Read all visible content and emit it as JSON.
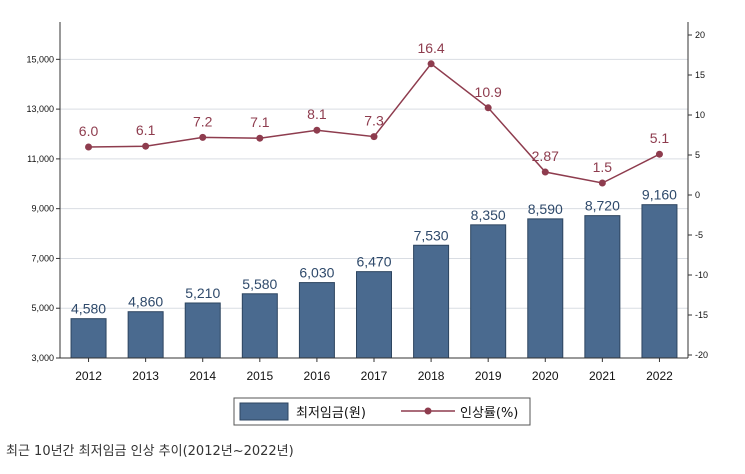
{
  "chart_data": {
    "type": "bar+line",
    "categories": [
      "2012",
      "2013",
      "2014",
      "2015",
      "2016",
      "2017",
      "2018",
      "2019",
      "2020",
      "2021",
      "2022"
    ],
    "series": [
      {
        "name": "최저임금(원)",
        "type": "bar",
        "axis": "left",
        "values": [
          4580,
          4860,
          5210,
          5580,
          6030,
          6470,
          7530,
          8350,
          8590,
          8720,
          9160
        ],
        "labels": [
          "4,580",
          "4,860",
          "5,210",
          "5,580",
          "6,030",
          "6,470",
          "7,530",
          "8,350",
          "8,590",
          "8,720",
          "9,160"
        ],
        "color": "#4a6a8f"
      },
      {
        "name": "인상률(%)",
        "type": "line",
        "axis": "right",
        "values": [
          6.0,
          6.1,
          7.2,
          7.1,
          8.1,
          7.3,
          16.4,
          10.9,
          2.87,
          1.5,
          5.1
        ],
        "labels": [
          "6.0",
          "6.1",
          "7.2",
          "7.1",
          "8.1",
          "7.3",
          "16.4",
          "10.9",
          "2.87",
          "1.5",
          "5.1"
        ],
        "color": "#8e3c4e"
      }
    ],
    "y_left": {
      "range": [
        3000,
        16500
      ],
      "ticks": [
        3000,
        5000,
        7000,
        9000,
        11000,
        13000,
        15000
      ],
      "tick_labels": [
        "3,000",
        "5,000",
        "7,000",
        "9,000",
        "11,000",
        "13,000",
        "15,000"
      ]
    },
    "y_right": {
      "range": [
        -20,
        20
      ],
      "ticks": [
        -20,
        -15,
        -10,
        -5,
        0,
        5,
        10,
        15,
        20
      ],
      "tick_labels": [
        "-20",
        "-15",
        "-10",
        "-5",
        "0",
        "5",
        "10",
        "15",
        "20"
      ]
    },
    "grid": true,
    "legend": {
      "position": "bottom-center"
    },
    "caption": "최근 10년간 최저임금 인상 추이(2012년~2022년)"
  }
}
